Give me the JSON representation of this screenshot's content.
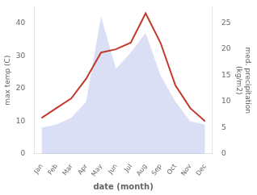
{
  "chart_data": {
    "type": "line",
    "xlabel": "date (month)",
    "ylabel": "max temp (C)",
    "y2label": "med. precipitation\n(kg/m2)",
    "categories": [
      "Jan",
      "Feb",
      "Mar",
      "Apr",
      "May",
      "Jun",
      "Jul",
      "Aug",
      "Sep",
      "Oct",
      "Nov",
      "Dec"
    ],
    "series": [
      {
        "type": "area",
        "color": "#b0b8e8",
        "values": [
          8,
          9,
          11,
          16,
          42,
          26,
          31,
          37,
          24,
          16,
          10,
          9
        ]
      },
      {
        "type": "line",
        "color": "#c0392b",
        "values": [
          11,
          14,
          17,
          23,
          31,
          32,
          34,
          43,
          34,
          21,
          14,
          10
        ]
      }
    ],
    "ylim": [
      0,
      45
    ],
    "yticks": [
      0,
      10,
      20,
      30,
      40
    ],
    "y2lim": [
      0,
      28.125
    ],
    "y2ticks": [
      0,
      5,
      10,
      15,
      20,
      25
    ],
    "grid": false
  }
}
